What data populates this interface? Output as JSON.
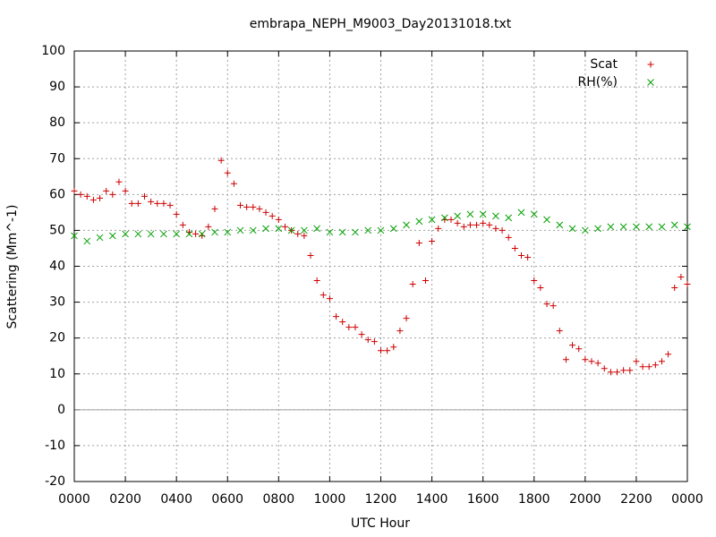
{
  "chart_data": {
    "type": "scatter",
    "title": "embrapa_NEPH_M9003_Day20131018.txt",
    "x_label": "UTC Hour",
    "y_label": "Scattering (Mm^-1)",
    "xlim": [
      0,
      24
    ],
    "ylim": [
      -20,
      100
    ],
    "xticks": [
      {
        "value": 0,
        "label": "0000"
      },
      {
        "value": 2,
        "label": "0200"
      },
      {
        "value": 4,
        "label": "0400"
      },
      {
        "value": 6,
        "label": "0600"
      },
      {
        "value": 8,
        "label": "0800"
      },
      {
        "value": 10,
        "label": "1000"
      },
      {
        "value": 12,
        "label": "1200"
      },
      {
        "value": 14,
        "label": "1400"
      },
      {
        "value": 16,
        "label": "1600"
      },
      {
        "value": 18,
        "label": "1800"
      },
      {
        "value": 20,
        "label": "2000"
      },
      {
        "value": 22,
        "label": "2200"
      },
      {
        "value": 24,
        "label": "0000"
      }
    ],
    "yticks": [
      -20,
      -10,
      0,
      10,
      20,
      30,
      40,
      50,
      60,
      70,
      80,
      90,
      100
    ],
    "grid": true,
    "legend": "top-right",
    "series": [
      {
        "name": "Scat",
        "color": "#cc0000",
        "marker": "plus",
        "x": [
          0,
          0.25,
          0.5,
          0.75,
          1,
          1.25,
          1.5,
          1.75,
          2,
          2.25,
          2.5,
          2.75,
          3,
          3.25,
          3.5,
          3.75,
          4,
          4.25,
          4.5,
          4.75,
          5,
          5.25,
          5.5,
          5.75,
          6,
          6.25,
          6.5,
          6.75,
          7,
          7.25,
          7.5,
          7.75,
          8,
          8.25,
          8.5,
          8.75,
          9,
          9.25,
          9.5,
          9.75,
          10,
          10.25,
          10.5,
          10.75,
          11,
          11.25,
          11.5,
          11.75,
          12,
          12.25,
          12.5,
          12.75,
          13,
          13.25,
          13.5,
          13.75,
          14,
          14.25,
          14.5,
          14.75,
          15,
          15.25,
          15.5,
          15.75,
          16,
          16.25,
          16.5,
          16.75,
          17,
          17.25,
          17.5,
          17.75,
          18,
          18.25,
          18.5,
          18.75,
          19,
          19.25,
          19.5,
          19.75,
          20,
          20.25,
          20.5,
          20.75,
          21,
          21.25,
          21.5,
          21.75,
          22,
          22.25,
          22.5,
          22.75,
          23,
          23.25,
          23.5,
          23.75,
          24
        ],
        "values": [
          61,
          60,
          59.5,
          58.5,
          59,
          61,
          60,
          63.5,
          61,
          57.5,
          57.5,
          59.5,
          58,
          57.5,
          57.5,
          57,
          54.5,
          51.5,
          49.5,
          49,
          48.5,
          51,
          56,
          69.5,
          66,
          63,
          57,
          56.5,
          56.5,
          56,
          55,
          54,
          53,
          51,
          50,
          49,
          48.5,
          43,
          36,
          32,
          31,
          26,
          24.5,
          23,
          23,
          21,
          19.5,
          19,
          16.5,
          16.5,
          17.5,
          22,
          25.5,
          35,
          46.5,
          36,
          47,
          50.5,
          53,
          53,
          52,
          51,
          51.5,
          51.5,
          52,
          51.5,
          50.5,
          50,
          48,
          45,
          43,
          42.5,
          36,
          34,
          29.5,
          29,
          22,
          14,
          18,
          17,
          14,
          13.5,
          13,
          11.5,
          10.5,
          10.5,
          11,
          11,
          13.5,
          12,
          12,
          12.5,
          13.5,
          15.5,
          34,
          37,
          35
        ]
      },
      {
        "name": "RH(%)",
        "color": "#00a000",
        "marker": "cross",
        "x": [
          0,
          0.5,
          1,
          1.5,
          2,
          2.5,
          3,
          3.5,
          4,
          4.5,
          5,
          5.5,
          6,
          6.5,
          7,
          7.5,
          8,
          8.5,
          9,
          9.5,
          10,
          10.5,
          11,
          11.5,
          12,
          12.5,
          13,
          13.5,
          14,
          14.5,
          15,
          15.5,
          16,
          16.5,
          17,
          17.5,
          18,
          18.5,
          19,
          19.5,
          20,
          20.5,
          21,
          21.5,
          22,
          22.5,
          23,
          23.5,
          24
        ],
        "values": [
          48.5,
          47,
          48,
          48.5,
          49,
          49,
          49,
          49,
          49,
          49,
          49,
          49.5,
          49.5,
          50,
          50,
          50.5,
          50.5,
          50,
          50,
          50.5,
          49.5,
          49.5,
          49.5,
          50,
          50,
          50.5,
          51.5,
          52.5,
          53,
          53.5,
          54,
          54.5,
          54.5,
          54,
          53.5,
          55,
          54.5,
          53,
          51.5,
          50.5,
          50,
          50.5,
          51,
          51,
          51,
          51,
          51,
          51.5,
          51
        ]
      }
    ]
  }
}
